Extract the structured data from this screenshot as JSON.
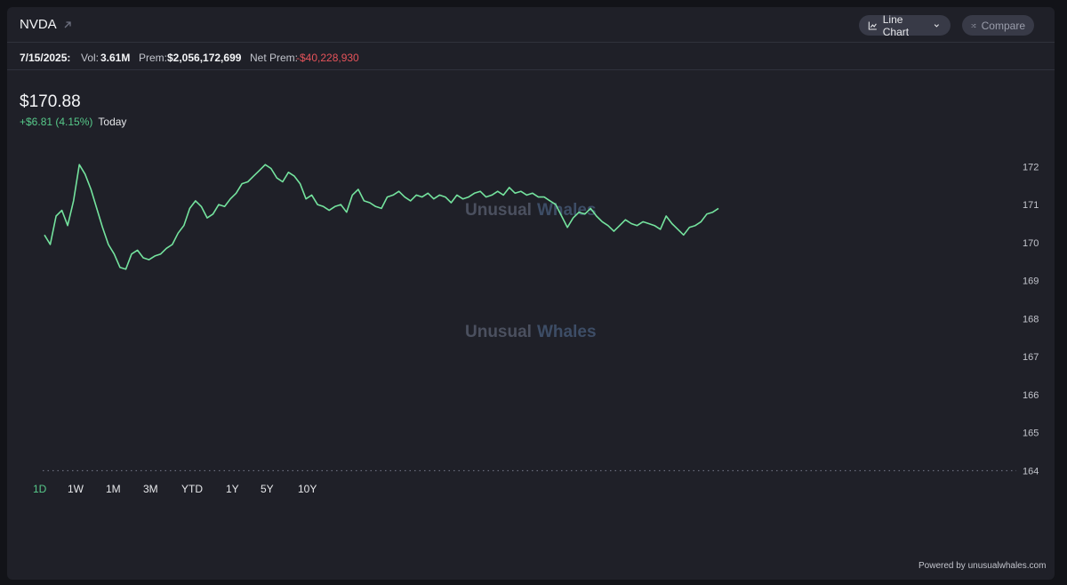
{
  "header": {
    "ticker": "NVDA",
    "line_chart_label": "Line Chart",
    "compare_label": "Compare",
    "icons": {
      "external": "external-link-icon",
      "line": "line-chart-icon",
      "chevron": "chevron-down-icon",
      "shuffle": "shuffle-icon"
    }
  },
  "stats": {
    "date": "7/15/2025:",
    "vol_label": "Vol:",
    "vol_value": "3.61M",
    "prem_label": "Prem:",
    "prem_value": "$2,056,172,699",
    "net_prem_label": "Net Prem:",
    "net_prem_value": "-$40,228,930"
  },
  "quote": {
    "price": "$170.88",
    "change": "+$6.81 (4.15%)",
    "period": "Today"
  },
  "watermark": {
    "word1": "Unusual",
    "word2": "Whales"
  },
  "colors": {
    "up": "#57c98a",
    "down": "#e5535a",
    "line": "#74e39e"
  },
  "ranges": [
    "1D",
    "1W",
    "1M",
    "3M",
    "YTD",
    "1Y",
    "5Y",
    "10Y"
  ],
  "active_range": "1D",
  "footer": {
    "powered": "Powered by unusualwhales.com"
  },
  "chart_data": {
    "type": "line",
    "ylim": [
      163.8,
      172.5
    ],
    "y_ticks": [
      "172",
      "171",
      "170",
      "169",
      "168",
      "167",
      "166",
      "165",
      "164"
    ],
    "y_tick_values": [
      172,
      171,
      170,
      169,
      168,
      167,
      166,
      165,
      164
    ],
    "baseline": 164,
    "series": [
      {
        "values": [
          170.2,
          169.95,
          170.7,
          170.85,
          170.45,
          171.1,
          172.05,
          171.8,
          171.4,
          170.9,
          170.4,
          169.95,
          169.7,
          169.35,
          169.3,
          169.7,
          169.8,
          169.6,
          169.55,
          169.65,
          169.7,
          169.85,
          169.95,
          170.25,
          170.45,
          170.9,
          171.1,
          170.95,
          170.65,
          170.75,
          171.0,
          170.95,
          171.15,
          171.3,
          171.55,
          171.6,
          171.75,
          171.9,
          172.05,
          171.95,
          171.7,
          171.6,
          171.85,
          171.75,
          171.55,
          171.15,
          171.25,
          171.0,
          170.95,
          170.85,
          170.95,
          171.0,
          170.8,
          171.25,
          171.4,
          171.1,
          171.05,
          170.95,
          170.9,
          171.2,
          171.25,
          171.35,
          171.2,
          171.1,
          171.25,
          171.2,
          171.3,
          171.15,
          171.25,
          171.2,
          171.05,
          171.25,
          171.15,
          171.2,
          171.3,
          171.35,
          171.2,
          171.25,
          171.35,
          171.25,
          171.45,
          171.3,
          171.35,
          171.25,
          171.3,
          171.2,
          171.2,
          171.1,
          171.0,
          170.7,
          170.4,
          170.65,
          170.8,
          170.75,
          170.9,
          170.7,
          170.55,
          170.45,
          170.3,
          170.45,
          170.6,
          170.5,
          170.45,
          170.55,
          170.5,
          170.45,
          170.35,
          170.7,
          170.5,
          170.35,
          170.2,
          170.4,
          170.45,
          170.55,
          170.75,
          170.8,
          170.9
        ]
      }
    ]
  }
}
